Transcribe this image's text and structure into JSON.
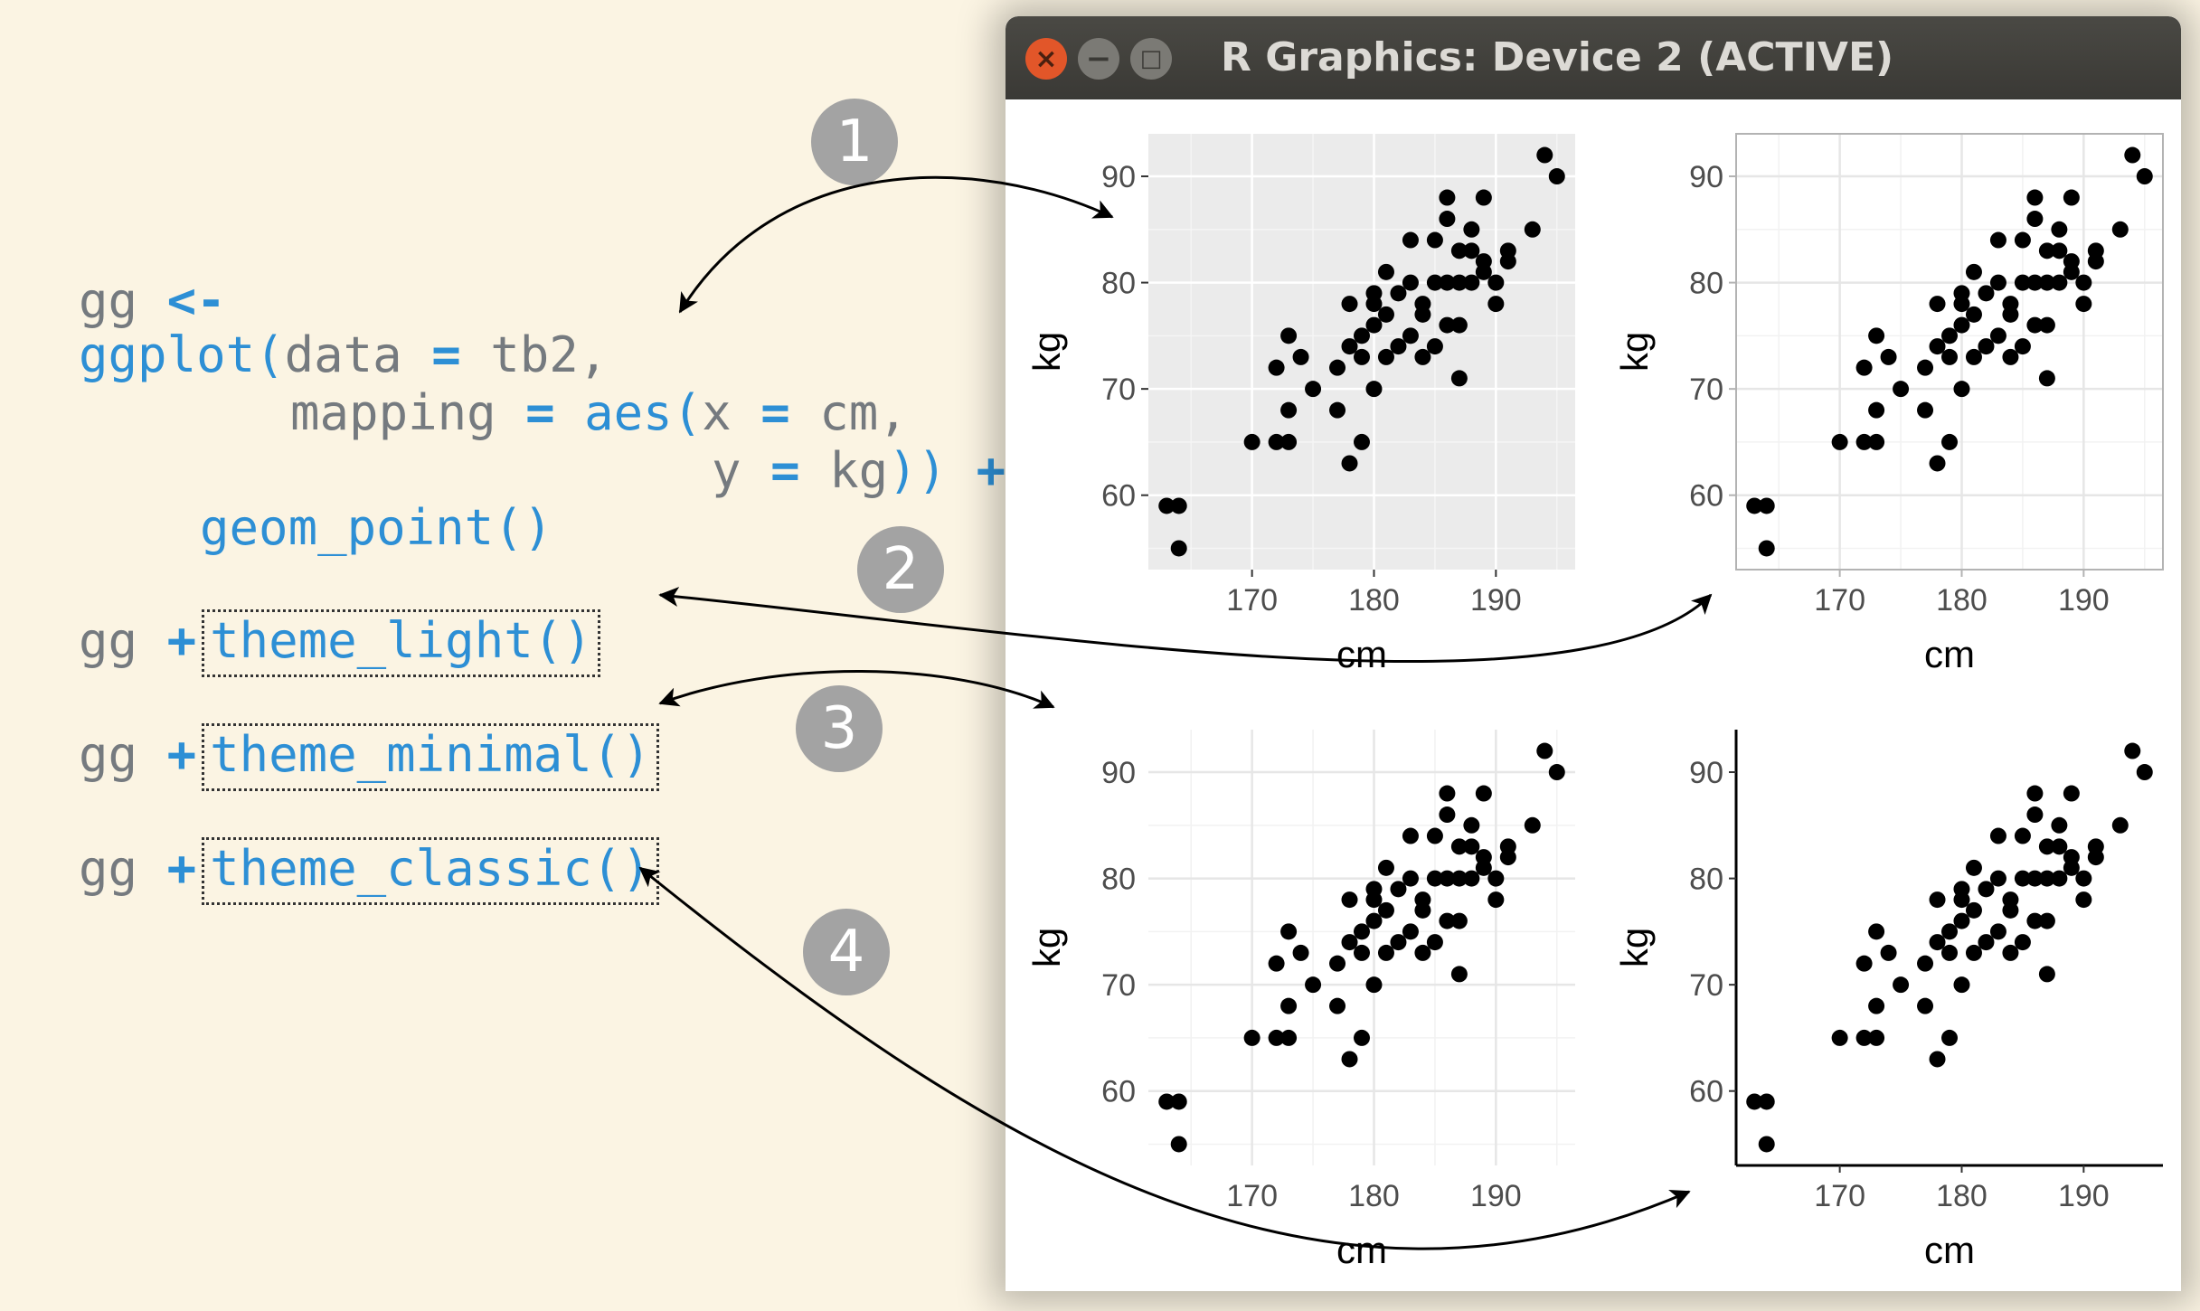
{
  "code": {
    "line1": {
      "a": "gg",
      "b": "<-"
    },
    "line2": {
      "a": "ggplot",
      "b": "(",
      "c": "data",
      "d": "=",
      "e": "tb2,"
    },
    "line3": {
      "a": "mapping",
      "b": "=",
      "c": "aes",
      "d": "(",
      "e": "x",
      "f": "=",
      "g": "cm,"
    },
    "line4": {
      "a": "y",
      "b": "=",
      "c": "kg",
      "d": "))",
      "e": "+"
    },
    "line5": {
      "a": "geom_point()"
    },
    "theme_lines": [
      {
        "prefix": "gg",
        "op": "+",
        "fn": "theme_light()"
      },
      {
        "prefix": "gg",
        "op": "+",
        "fn": "theme_minimal()"
      },
      {
        "prefix": "gg",
        "op": "+",
        "fn": "theme_classic()"
      }
    ]
  },
  "badges": [
    "1",
    "2",
    "3",
    "4"
  ],
  "window": {
    "title": "R Graphics: Device 2 (ACTIVE)",
    "close_glyph": "×",
    "minimize_glyph": "−",
    "maximize_glyph": "□"
  },
  "plots": [
    {
      "theme": "theme_grey",
      "xlabel": "cm",
      "ylabel": "kg"
    },
    {
      "theme": "theme_light",
      "xlabel": "cm",
      "ylabel": "kg"
    },
    {
      "theme": "theme_minimal",
      "xlabel": "cm",
      "ylabel": "kg"
    },
    {
      "theme": "theme_classic",
      "xlabel": "cm",
      "ylabel": "kg"
    }
  ],
  "chart_data": {
    "type": "scatter",
    "xlabel": "cm",
    "ylabel": "kg",
    "xlim": [
      161.5,
      196.5
    ],
    "ylim": [
      53,
      94
    ],
    "xticks": [
      170,
      180,
      190
    ],
    "yticks": [
      60,
      70,
      80,
      90
    ],
    "points": [
      [
        163,
        59
      ],
      [
        164,
        59
      ],
      [
        164,
        55
      ],
      [
        170,
        65
      ],
      [
        172,
        65
      ],
      [
        173,
        65
      ],
      [
        172,
        72
      ],
      [
        173,
        75
      ],
      [
        173,
        68
      ],
      [
        174,
        73
      ],
      [
        175,
        70
      ],
      [
        177,
        72
      ],
      [
        177,
        68
      ],
      [
        178,
        63
      ],
      [
        179,
        65
      ],
      [
        178,
        78
      ],
      [
        178,
        74
      ],
      [
        179,
        73
      ],
      [
        180,
        70
      ],
      [
        179,
        75
      ],
      [
        180,
        76
      ],
      [
        180,
        78
      ],
      [
        181,
        73
      ],
      [
        181,
        77
      ],
      [
        182,
        74
      ],
      [
        182,
        79
      ],
      [
        183,
        75
      ],
      [
        183,
        80
      ],
      [
        184,
        78
      ],
      [
        184,
        73
      ],
      [
        185,
        80
      ],
      [
        185,
        74
      ],
      [
        185,
        84
      ],
      [
        186,
        80
      ],
      [
        186,
        76
      ],
      [
        186,
        86
      ],
      [
        186,
        88
      ],
      [
        187,
        80
      ],
      [
        187,
        83
      ],
      [
        187,
        76
      ],
      [
        187,
        71
      ],
      [
        188,
        85
      ],
      [
        188,
        80
      ],
      [
        188,
        83
      ],
      [
        189,
        82
      ],
      [
        189,
        88
      ],
      [
        189,
        81
      ],
      [
        190,
        80
      ],
      [
        190,
        78
      ],
      [
        191,
        83
      ],
      [
        191,
        82
      ],
      [
        193,
        85
      ],
      [
        194,
        92
      ],
      [
        195,
        90
      ],
      [
        181,
        81
      ],
      [
        180,
        79
      ],
      [
        183,
        84
      ],
      [
        184,
        77
      ]
    ],
    "colors": {
      "point": "#000000",
      "panel_grey": "#ebebeb"
    }
  }
}
